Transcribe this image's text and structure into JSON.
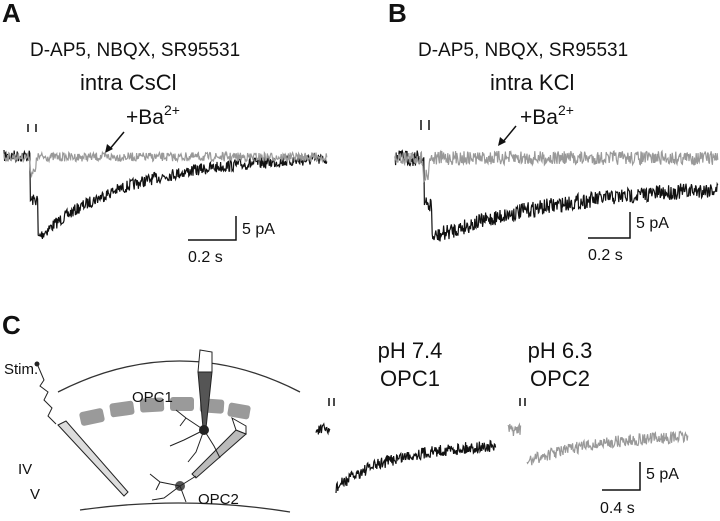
{
  "panels": [
    {
      "label": "A",
      "drugs": "D-AP5, NBQX, SR95531",
      "internal": "intra CsCl",
      "added": {
        "base": "+Ba",
        "sup": "2+"
      },
      "scale": {
        "y": "5 pA",
        "x": "0.2 s"
      }
    },
    {
      "label": "B",
      "drugs": "D-AP5, NBQX, SR95531",
      "internal": "intra KCl",
      "added": {
        "base": "+Ba",
        "sup": "2+"
      },
      "scale": {
        "y": "5 pA",
        "x": "0.2 s"
      }
    },
    {
      "label": "C",
      "diagram": {
        "stim": "Stim.",
        "cell1": "OPC1",
        "layer_iv": "IV",
        "layer_v": "V",
        "cell2": "OPC2"
      },
      "traces": [
        {
          "ph": "pH 7.4",
          "cell": "OPC1"
        },
        {
          "ph": "pH 6.3",
          "cell": "OPC2"
        }
      ],
      "scale": {
        "y": "5 pA",
        "x": "0.4 s"
      }
    }
  ]
}
